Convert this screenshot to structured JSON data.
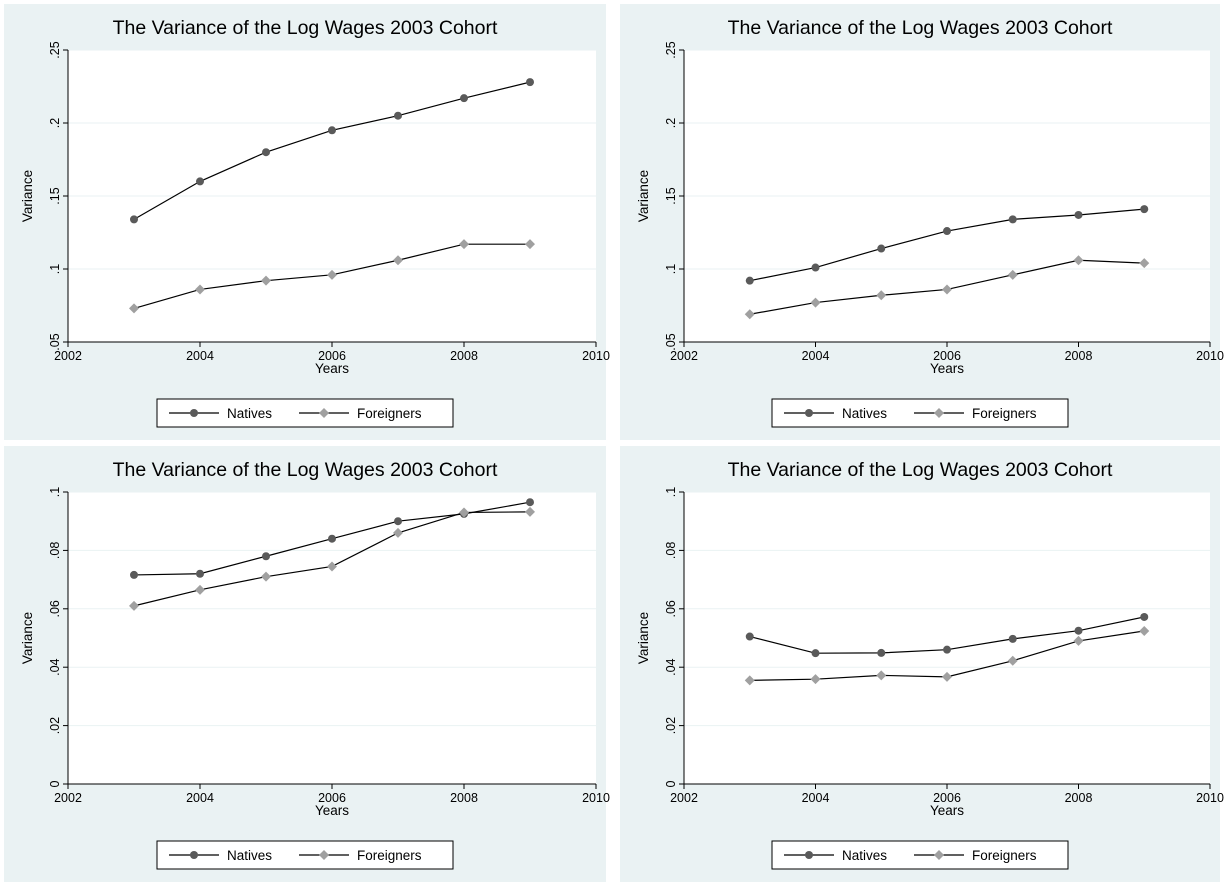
{
  "figure": {
    "background": "#ffffff",
    "panel_background": "#eaf2f3",
    "plot_background": "#ffffff",
    "grid_color": "#eaf2f3",
    "line_color": "#000000",
    "natives_marker_color": "#5a5a5a",
    "foreigners_marker_color": "#a0a0a0"
  },
  "chart_data": [
    {
      "type": "line",
      "title": "The Variance of the Log Wages 2003 Cohort",
      "xlabel": "Years",
      "ylabel": "Variance",
      "xlim": [
        2002,
        2010
      ],
      "ylim": [
        0.05,
        0.25
      ],
      "xticks": [
        2002,
        2004,
        2006,
        2008,
        2010
      ],
      "xtick_labels": [
        "2002",
        "2004",
        "2006",
        "2008",
        "2010"
      ],
      "yticks": [
        0.05,
        0.1,
        0.15,
        0.2,
        0.25
      ],
      "ytick_labels": [
        ".05",
        ".1",
        ".15",
        ".2",
        ".25"
      ],
      "grid": true,
      "legend": "bottom",
      "x": [
        2003,
        2004,
        2005,
        2006,
        2007,
        2008,
        2009
      ],
      "series": [
        {
          "name": "Natives",
          "marker": "circle",
          "values": [
            0.134,
            0.16,
            0.18,
            0.195,
            0.205,
            0.217,
            0.228
          ]
        },
        {
          "name": "Foreigners",
          "marker": "diamond",
          "values": [
            0.073,
            0.086,
            0.092,
            0.096,
            0.106,
            0.117,
            0.117
          ]
        }
      ]
    },
    {
      "type": "line",
      "title": "The Variance of the Log Wages 2003 Cohort",
      "xlabel": "Years",
      "ylabel": "Variance",
      "xlim": [
        2002,
        2010
      ],
      "ylim": [
        0.05,
        0.25
      ],
      "xticks": [
        2002,
        2004,
        2006,
        2008,
        2010
      ],
      "xtick_labels": [
        "2002",
        "2004",
        "2006",
        "2008",
        "2010"
      ],
      "yticks": [
        0.05,
        0.1,
        0.15,
        0.2,
        0.25
      ],
      "ytick_labels": [
        ".05",
        ".1",
        ".15",
        ".2",
        ".25"
      ],
      "grid": true,
      "legend": "bottom",
      "x": [
        2003,
        2004,
        2005,
        2006,
        2007,
        2008,
        2009
      ],
      "series": [
        {
          "name": "Natives",
          "marker": "circle",
          "values": [
            0.092,
            0.101,
            0.114,
            0.126,
            0.134,
            0.137,
            0.141
          ]
        },
        {
          "name": "Foreigners",
          "marker": "diamond",
          "values": [
            0.069,
            0.077,
            0.082,
            0.086,
            0.096,
            0.106,
            0.104
          ]
        }
      ]
    },
    {
      "type": "line",
      "title": "The Variance of the Log Wages 2003 Cohort",
      "xlabel": "Years",
      "ylabel": "Variance",
      "xlim": [
        2002,
        2010
      ],
      "ylim": [
        0,
        0.1
      ],
      "xticks": [
        2002,
        2004,
        2006,
        2008,
        2010
      ],
      "xtick_labels": [
        "2002",
        "2004",
        "2006",
        "2008",
        "2010"
      ],
      "yticks": [
        0,
        0.02,
        0.04,
        0.06,
        0.08,
        0.1
      ],
      "ytick_labels": [
        "0",
        ".02",
        ".04",
        ".06",
        ".08",
        ".1"
      ],
      "grid": true,
      "legend": "bottom",
      "x": [
        2003,
        2004,
        2005,
        2006,
        2007,
        2008,
        2009
      ],
      "series": [
        {
          "name": "Natives",
          "marker": "circle",
          "values": [
            0.0716,
            0.072,
            0.078,
            0.084,
            0.09,
            0.0925,
            0.0965
          ]
        },
        {
          "name": "Foreigners",
          "marker": "diamond",
          "values": [
            0.061,
            0.0665,
            0.071,
            0.0745,
            0.086,
            0.093,
            0.0932
          ]
        }
      ]
    },
    {
      "type": "line",
      "title": "The Variance of the Log Wages 2003 Cohort",
      "xlabel": "Years",
      "ylabel": "Variance",
      "xlim": [
        2002,
        2010
      ],
      "ylim": [
        0,
        0.1
      ],
      "xticks": [
        2002,
        2004,
        2006,
        2008,
        2010
      ],
      "xtick_labels": [
        "2002",
        "2004",
        "2006",
        "2008",
        "2010"
      ],
      "yticks": [
        0,
        0.02,
        0.04,
        0.06,
        0.08,
        0.1
      ],
      "ytick_labels": [
        "0",
        ".02",
        ".04",
        ".06",
        ".08",
        ".1"
      ],
      "grid": true,
      "legend": "bottom",
      "x": [
        2003,
        2004,
        2005,
        2006,
        2007,
        2008,
        2009
      ],
      "series": [
        {
          "name": "Natives",
          "marker": "circle",
          "values": [
            0.0505,
            0.0448,
            0.0449,
            0.046,
            0.0497,
            0.0525,
            0.0572
          ]
        },
        {
          "name": "Foreigners",
          "marker": "diamond",
          "values": [
            0.0355,
            0.0359,
            0.0372,
            0.0367,
            0.0422,
            0.049,
            0.0524
          ]
        }
      ]
    }
  ]
}
